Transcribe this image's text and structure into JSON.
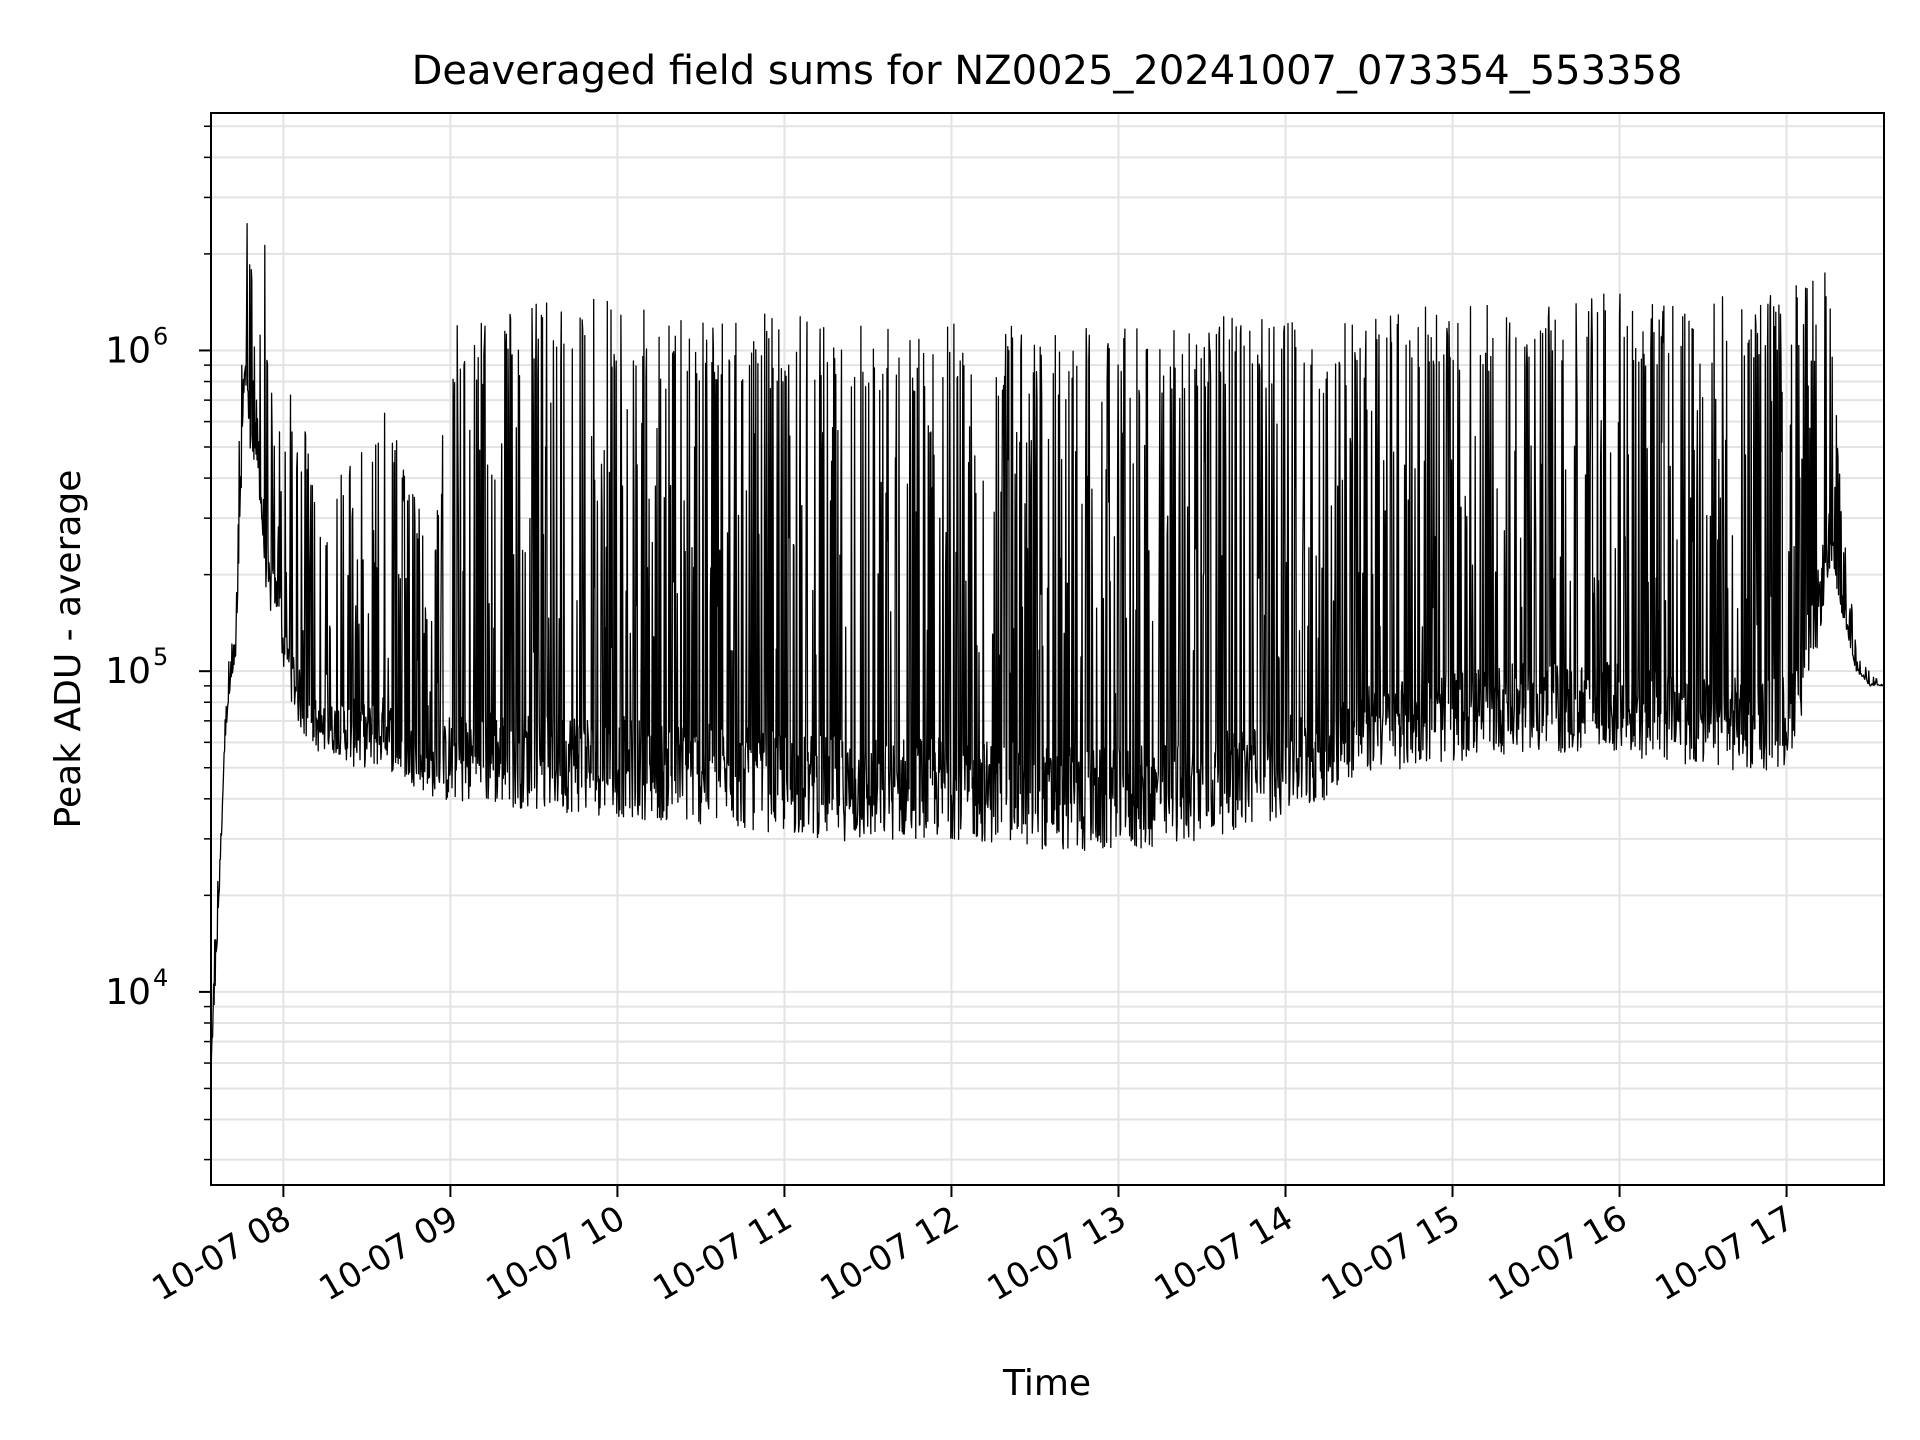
{
  "chart_data": {
    "type": "line",
    "title": "Deaveraged field sums for NZ0025_20241007_073354_553358",
    "xlabel": "Time",
    "ylabel": "Peak ADU - average",
    "yscale": "log",
    "ylim": [
      2500,
      5500000
    ],
    "xlim": [
      "2024-10-07 07:34",
      "2024-10-07 17:35"
    ],
    "grid": true,
    "series_color": "#000000",
    "x_ticks": [
      {
        "t": "2024-10-07 08:00",
        "label": "10-07 08"
      },
      {
        "t": "2024-10-07 09:00",
        "label": "10-07 09"
      },
      {
        "t": "2024-10-07 10:00",
        "label": "10-07 10"
      },
      {
        "t": "2024-10-07 11:00",
        "label": "10-07 11"
      },
      {
        "t": "2024-10-07 12:00",
        "label": "10-07 12"
      },
      {
        "t": "2024-10-07 13:00",
        "label": "10-07 13"
      },
      {
        "t": "2024-10-07 14:00",
        "label": "10-07 14"
      },
      {
        "t": "2024-10-07 15:00",
        "label": "10-07 15"
      },
      {
        "t": "2024-10-07 16:00",
        "label": "10-07 16"
      },
      {
        "t": "2024-10-07 17:00",
        "label": "10-07 17"
      }
    ],
    "y_ticks": [
      {
        "value": 10000,
        "base": "10",
        "exp": "4"
      },
      {
        "value": 100000,
        "base": "10",
        "exp": "5"
      },
      {
        "value": 1000000,
        "base": "10",
        "exp": "6"
      }
    ],
    "series": [
      {
        "x": [
          "2024-10-07 07:34",
          "2024-10-07 07:35",
          "2024-10-07 07:37",
          "2024-10-07 07:39",
          "2024-10-07 07:41",
          "2024-10-07 07:43",
          "2024-10-07 07:45",
          "2024-10-07 07:46",
          "2024-10-07 07:48",
          "2024-10-07 07:50",
          "2024-10-07 07:51",
          "2024-10-07 07:53",
          "2024-10-07 07:55",
          "2024-10-07 07:58",
          "2024-10-07 08:00",
          "2024-10-07 08:03",
          "2024-10-07 08:05",
          "2024-10-07 08:08",
          "2024-10-07 08:10",
          "2024-10-07 08:13",
          "2024-10-07 08:15",
          "2024-10-07 08:20",
          "2024-10-07 08:25",
          "2024-10-07 08:30",
          "2024-10-07 08:35",
          "2024-10-07 08:40",
          "2024-10-07 08:45",
          "2024-10-07 08:50",
          "2024-10-07 08:55",
          "2024-10-07 09:00",
          "2024-10-07 09:15",
          "2024-10-07 09:30",
          "2024-10-07 09:45",
          "2024-10-07 10:00",
          "2024-10-07 10:15",
          "2024-10-07 10:30",
          "2024-10-07 10:45",
          "2024-10-07 11:00",
          "2024-10-07 11:15",
          "2024-10-07 11:30",
          "2024-10-07 11:45",
          "2024-10-07 12:00",
          "2024-10-07 12:15",
          "2024-10-07 12:30",
          "2024-10-07 12:45",
          "2024-10-07 13:00",
          "2024-10-07 13:15",
          "2024-10-07 13:30",
          "2024-10-07 13:45",
          "2024-10-07 14:00",
          "2024-10-07 14:10",
          "2024-10-07 14:15",
          "2024-10-07 14:20",
          "2024-10-07 14:30",
          "2024-10-07 14:45",
          "2024-10-07 15:00",
          "2024-10-07 15:15",
          "2024-10-07 15:30",
          "2024-10-07 15:45",
          "2024-10-07 16:00",
          "2024-10-07 16:15",
          "2024-10-07 16:30",
          "2024-10-07 16:45",
          "2024-10-07 17:00",
          "2024-10-07 17:10",
          "2024-10-07 17:15",
          "2024-10-07 17:20",
          "2024-10-07 17:25",
          "2024-10-07 17:30",
          "2024-10-07 17:35"
        ],
        "lo": [
          5000,
          8000,
          20000,
          60000,
          90000,
          110000,
          400000,
          800000,
          500000,
          400000,
          400000,
          200000,
          150000,
          150000,
          100000,
          80000,
          70000,
          60000,
          60000,
          55000,
          55000,
          55000,
          50000,
          50000,
          50000,
          48000,
          45000,
          42000,
          40000,
          38000,
          38000,
          37000,
          36000,
          35000,
          34000,
          33000,
          32000,
          31000,
          30000,
          29000,
          30000,
          30000,
          29000,
          28000,
          27000,
          27000,
          28000,
          30000,
          32000,
          35000,
          38000,
          40000,
          45000,
          48000,
          50000,
          52000,
          55000,
          55000,
          55000,
          55000,
          52000,
          50000,
          48000,
          50000,
          100000,
          200000,
          150000,
          100000,
          90000,
          90000
        ],
        "hi": [
          6000,
          12000,
          50000,
          90000,
          120000,
          140000,
          1500000,
          3500000,
          2200000,
          1000000,
          800000,
          3000000,
          1000000,
          600000,
          600000,
          800000,
          500000,
          600000,
          400000,
          300000,
          300000,
          400000,
          600000,
          500000,
          700000,
          600000,
          400000,
          300000,
          300000,
          1200000,
          1300000,
          1400000,
          1500000,
          1400000,
          1300000,
          1300000,
          1300000,
          1300000,
          1250000,
          1250000,
          1250000,
          1250000,
          1200000,
          1200000,
          1200000,
          1200000,
          1200000,
          1250000,
          1300000,
          1300000,
          1300000,
          1100000,
          1200000,
          1300000,
          1350000,
          1400000,
          1400000,
          1450000,
          1500000,
          1500000,
          1450000,
          1450000,
          1500000,
          1550000,
          1700000,
          2200000,
          300000,
          120000,
          100000,
          90000
        ]
      }
    ]
  }
}
